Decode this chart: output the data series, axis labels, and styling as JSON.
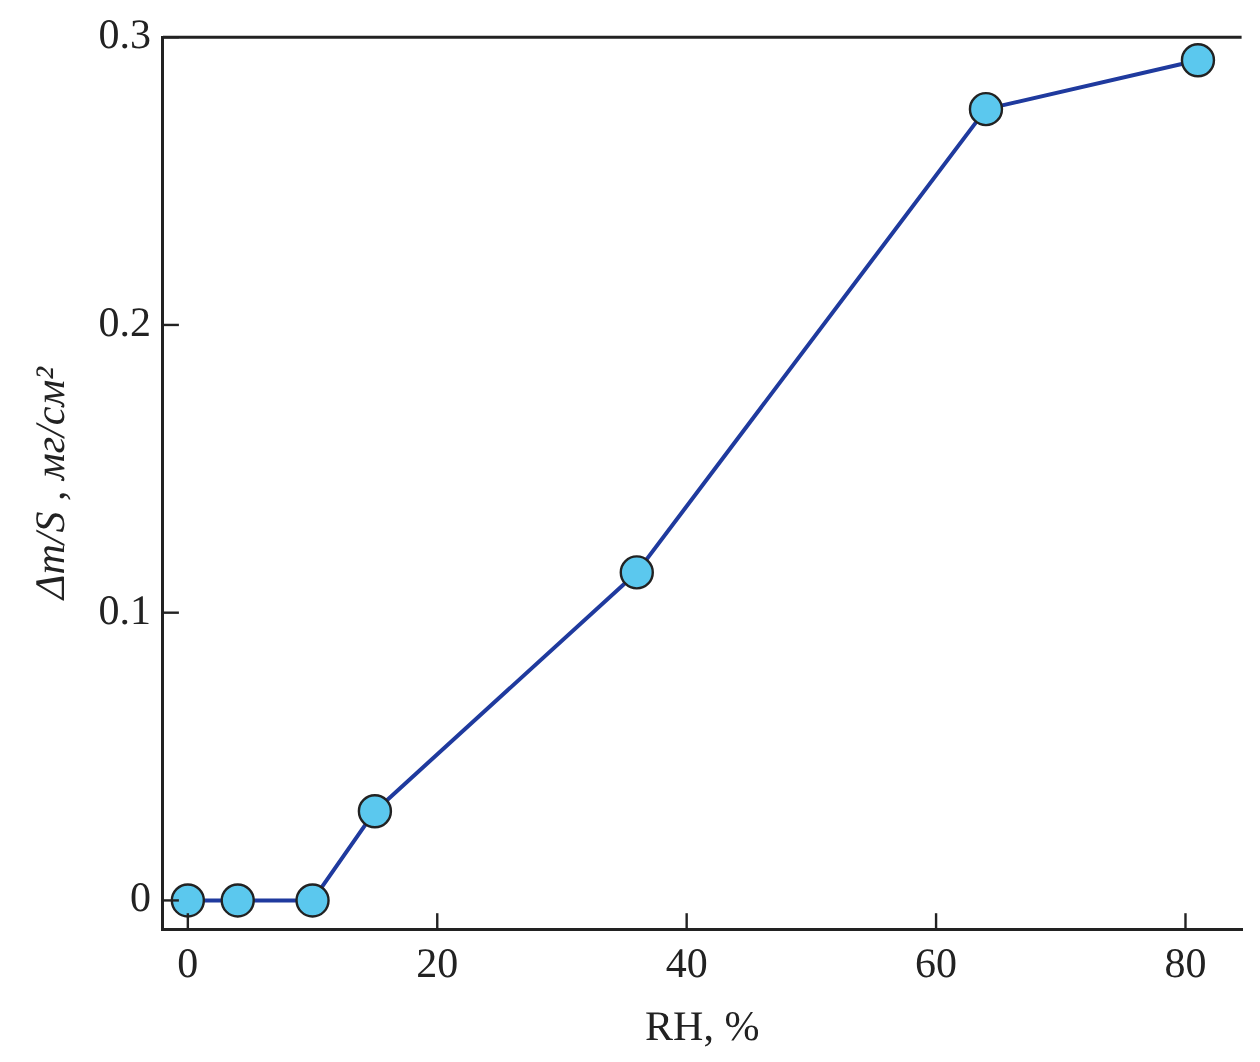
{
  "chart_data": {
    "type": "line",
    "xlabel": "RH, %",
    "ylabel": "Δm/S , мг/см²",
    "x": [
      0,
      4,
      10,
      15,
      36,
      64,
      81
    ],
    "series": [
      {
        "color": "#1f3a9e",
        "values": [
          0,
          0,
          0,
          0.031,
          0.114,
          0.275,
          0.292
        ]
      }
    ],
    "xlim": [
      -2,
      84.5
    ],
    "ylim": [
      -0.01,
      0.3
    ],
    "xticks": [
      0,
      20,
      40,
      60,
      80
    ],
    "yticks": [
      0,
      0.1,
      0.2,
      0.3
    ],
    "grid": false,
    "legend": false,
    "marker": "circle",
    "line_style": "solid"
  }
}
